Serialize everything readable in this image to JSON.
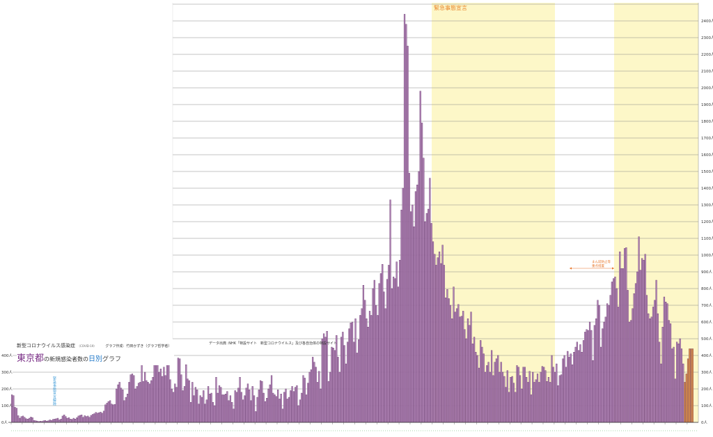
{
  "title": {
    "line1": "新型コロナウイルス感染症",
    "covid": "（COVID-19）",
    "maker": "グラフ作成：竹田かずき（グラフ哲学者）",
    "main_part1": "東京都",
    "main_part2": "の新規感染者数の",
    "main_part3": "日別",
    "main_part4": "グラフ"
  },
  "source_note": "データ出典 :NHK「特設サイト　新型コロナウイルス」及び各自治体の特設サイト",
  "colors": {
    "bar": "#b184b6",
    "bar_stroke": "#5b2a62",
    "bar_highlight": "#e39344",
    "emergency_band": "#fdf7c8",
    "emergency_text": "#e8862b",
    "lifted_text": "#3c9ad8",
    "measures_text": "#e8772a",
    "gridline": "#888888"
  },
  "chart_data": {
    "type": "bar",
    "title": "東京都の新規感染者数の日別グラフ",
    "xlabel": "",
    "ylabel": "",
    "ylim": [
      0,
      2500
    ],
    "grid": true,
    "yticks": [
      0,
      100,
      200,
      300,
      400,
      500,
      600,
      700,
      800,
      900,
      1000,
      1100,
      1200,
      1300,
      1400,
      1500,
      1600,
      1700,
      1800,
      1900,
      2000,
      2100,
      2200,
      2300,
      2400
    ],
    "ytick_labels_right": [
      "0人",
      "100人",
      "200人",
      "300人",
      "400人",
      "500人",
      "600人",
      "700人",
      "800人",
      "900人",
      "1000人",
      "1100人",
      "1200人",
      "1300人",
      "1400人",
      "1500人",
      "1600人",
      "1700人",
      "1800人",
      "1900人",
      "2000人",
      "2100人",
      "2200人",
      "2300人",
      "2400人"
    ],
    "ytick_labels_left": [
      "0人",
      "100人",
      "200人",
      "300人",
      "400人"
    ],
    "values": [
      165,
      160,
      90,
      85,
      40,
      25,
      35,
      38,
      30,
      22,
      20,
      25,
      32,
      28,
      12,
      10,
      8,
      5,
      7,
      6,
      10,
      12,
      8,
      10,
      15,
      12,
      18,
      20,
      22,
      25,
      15,
      20,
      38,
      45,
      35,
      25,
      28,
      20,
      18,
      25,
      20,
      28,
      38,
      42,
      45,
      30,
      40,
      35,
      38,
      30,
      42,
      48,
      52,
      60,
      55,
      58,
      62,
      55,
      68,
      105,
      115,
      125,
      130,
      110,
      105,
      108,
      200,
      225,
      240,
      205,
      195,
      130,
      150,
      170,
      240,
      285,
      290,
      280,
      200,
      215,
      235,
      240,
      360,
      245,
      300,
      250,
      240,
      230,
      250,
      270,
      360,
      380,
      420,
      300,
      320,
      275,
      330,
      280,
      470,
      440,
      255,
      200,
      180,
      230,
      210,
      385,
      380,
      285,
      190,
      215,
      345,
      260,
      250,
      120,
      240,
      160,
      210,
      195,
      110,
      160,
      150,
      190,
      110,
      135,
      215,
      170,
      175,
      120,
      100,
      270,
      175,
      220,
      210,
      165,
      165,
      170,
      185,
      130,
      160,
      120,
      80,
      190,
      180,
      205,
      270,
      180,
      135,
      160,
      205,
      230,
      195,
      130,
      215,
      160,
      65,
      150,
      195,
      250,
      245,
      175,
      125,
      145,
      200,
      225,
      280,
      175,
      165,
      155,
      195,
      140,
      170,
      80,
      180,
      200,
      140,
      150,
      190,
      215,
      185,
      210,
      220,
      100,
      135,
      175,
      280,
      265,
      165,
      235,
      300,
      315,
      390,
      360,
      330,
      240,
      305,
      200,
      500,
      530,
      510,
      545,
      245,
      300,
      450,
      445,
      430,
      520,
      390,
      300,
      510,
      540,
      460,
      350,
      480,
      560,
      595,
      600,
      480,
      620,
      415,
      495,
      640,
      680,
      820,
      730,
      620,
      570,
      665,
      640,
      800,
      850,
      700,
      640,
      830,
      890,
      945,
      780,
      680,
      855,
      940,
      1330,
      800,
      870,
      860,
      960,
      810,
      970,
      1270,
      1400,
      2440,
      2380,
      2250,
      1490,
      1260,
      1300,
      1170,
      1380,
      1420,
      1500,
      1980,
      1790,
      1580,
      1200,
      1250,
      1275,
      1460,
      1190,
      1080,
      1005,
      940,
      985,
      1020,
      950,
      1060,
      940,
      745,
      795,
      740,
      700,
      620,
      810,
      660,
      680,
      705,
      630,
      635,
      665,
      555,
      500,
      620,
      580,
      660,
      470,
      510,
      420,
      400,
      325,
      490,
      450,
      410,
      300,
      340,
      360,
      300,
      430,
      280,
      360,
      380,
      400,
      300,
      360,
      300,
      275,
      210,
      310,
      180,
      270,
      275,
      235,
      180,
      340,
      330,
      280,
      200,
      330,
      330,
      270,
      240,
      305,
      165,
      300,
      240,
      255,
      290,
      240,
      300,
      335,
      330,
      310,
      245,
      270,
      240,
      400,
      330,
      300,
      350,
      220,
      280,
      285,
      380,
      400,
      330,
      425,
      390,
      410,
      345,
      420,
      450,
      480,
      430,
      465,
      420,
      490,
      540,
      555,
      550,
      600,
      550,
      370,
      580,
      620,
      730,
      700,
      450,
      560,
      600,
      630,
      710,
      700,
      760,
      840,
      860,
      870,
      800,
      690,
      1020,
      920,
      920,
      1040,
      1045,
      790,
      600,
      610,
      680,
      770,
      830,
      900,
      1110,
      910,
      980,
      970,
      1005,
      760,
      650,
      620,
      630,
      690,
      730,
      850,
      650,
      480,
      350,
      570,
      750,
      720,
      710,
      610,
      590,
      440,
      450,
      260,
      480,
      470,
      500,
      440,
      350,
      240,
      290,
      380,
      440,
      440,
      440
    ]
  },
  "annotations": {
    "emergency": "緊急事態宣言",
    "lifted": "緊急事態宣言解除",
    "measures": "まん延防止等\n重点措置"
  }
}
